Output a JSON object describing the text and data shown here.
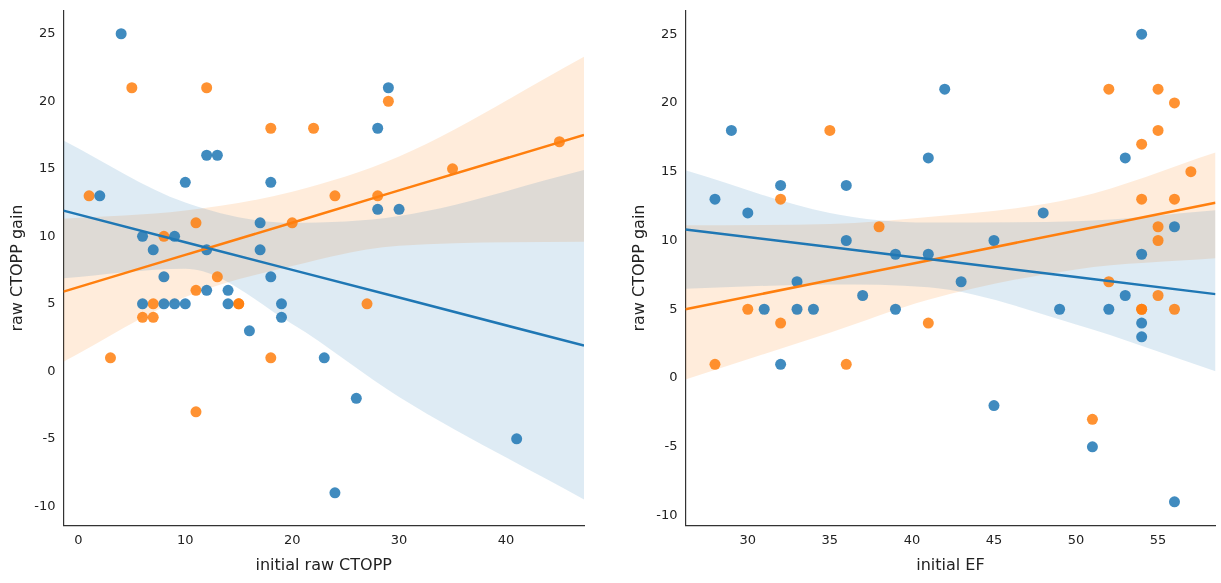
{
  "chart_data": [
    {
      "type": "scatter",
      "xlabel": "initial raw CTOPP",
      "ylabel": "raw CTOPP gain",
      "xlim": [
        -1.4,
        47.3
      ],
      "ylim": [
        -11.4,
        26.7
      ],
      "xticks": [
        0,
        10,
        20,
        30,
        40
      ],
      "yticks": [
        -10,
        -5,
        0,
        5,
        10,
        15,
        20,
        25
      ],
      "marker": "circle",
      "series": [
        {
          "color": "#1f77b4",
          "x": [
            4,
            2,
            10,
            12,
            13,
            18,
            6,
            9,
            7,
            12,
            17,
            17,
            8,
            18,
            6,
            8,
            9,
            10,
            12,
            14,
            14,
            19,
            19,
            16,
            23,
            26,
            24,
            41,
            28,
            29,
            28,
            30
          ],
          "values": [
            25,
            13,
            14,
            16,
            16,
            14,
            10,
            10,
            9,
            9,
            11,
            9,
            7,
            7,
            5,
            5,
            5,
            5,
            6,
            6,
            5,
            5,
            4,
            3,
            1,
            -2,
            -9,
            -5,
            18,
            21,
            12,
            12
          ]
        },
        {
          "color": "#ff7f0e",
          "x": [
            1,
            5,
            12,
            18,
            22,
            8,
            11,
            20,
            24,
            28,
            35,
            45,
            29,
            27,
            6,
            7,
            7,
            11,
            13,
            15,
            15,
            3,
            18,
            11
          ],
          "values": [
            13,
            21,
            21,
            18,
            18,
            10,
            11,
            11,
            13,
            13,
            15,
            17,
            20,
            5,
            4,
            4,
            5,
            6,
            7,
            5,
            5,
            1,
            1,
            -3
          ]
        },
        {
          "type": "line",
          "marker": "none",
          "color": "#1f77b4",
          "x": [
            -1.4,
            10,
            20,
            30,
            47.3
          ],
          "values": [
            11.9,
            9.56,
            7.51,
            5.46,
            1.9
          ],
          "lower": [
            6.9,
            7.6,
            3.5,
            -1.9,
            -9.5
          ],
          "upper": [
            17.1,
            12.5,
            11.0,
            11.5,
            14.9
          ]
        },
        {
          "type": "line",
          "marker": "none",
          "color": "#ff7f0e",
          "x": [
            -1.4,
            10,
            20,
            30,
            47.3
          ],
          "values": [
            5.9,
            8.62,
            11.0,
            13.4,
            17.5
          ],
          "lower": [
            0.7,
            5.5,
            7.8,
            9.3,
            9.6
          ],
          "upper": [
            11.3,
            11.9,
            13.3,
            15.9,
            23.3
          ]
        }
      ]
    },
    {
      "type": "scatter",
      "xlabel": "initial EF",
      "ylabel": "raw CTOPP gain",
      "xlim": [
        26.2,
        58.5
      ],
      "ylim": [
        -10.7,
        26.7
      ],
      "xticks": [
        30,
        35,
        40,
        45,
        50,
        55
      ],
      "yticks": [
        -10,
        -5,
        0,
        5,
        10,
        15,
        20,
        25
      ],
      "marker": "circle",
      "series": [
        {
          "color": "#1f77b4",
          "x": [
            28,
            29,
            30,
            32,
            32,
            36,
            36,
            33,
            31,
            33,
            34,
            37,
            39,
            39,
            41,
            41,
            42,
            43,
            45,
            45,
            48,
            49,
            52,
            53,
            53,
            54,
            54,
            54,
            54,
            56,
            51,
            56
          ],
          "values": [
            13,
            18,
            12,
            14,
            1,
            14,
            10,
            7,
            5,
            5,
            5,
            6,
            9,
            5,
            9,
            16,
            21,
            7,
            10,
            -2,
            12,
            5,
            5,
            6,
            16,
            9,
            4,
            3,
            25,
            11,
            -5,
            -9
          ]
        },
        {
          "color": "#ff7f0e",
          "x": [
            28,
            30,
            32,
            32,
            35,
            36,
            38,
            41,
            52,
            55,
            56,
            55,
            54,
            57,
            54,
            56,
            55,
            55,
            52,
            55,
            54,
            54,
            56,
            51
          ],
          "values": [
            1,
            5,
            13,
            4,
            18,
            1,
            11,
            4,
            21,
            21,
            20,
            18,
            17,
            15,
            13,
            13,
            11,
            10,
            7,
            6,
            5,
            5,
            5,
            -3
          ]
        },
        {
          "type": "line",
          "marker": "none",
          "color": "#1f77b4",
          "x": [
            26.2,
            35,
            41,
            50,
            58.5
          ],
          "values": [
            10.8,
            9.52,
            8.65,
            7.34,
            6.1
          ],
          "lower": [
            6.5,
            6.8,
            6.6,
            3.9,
            0.5
          ],
          "upper": [
            15.1,
            12.0,
            11.3,
            11.4,
            12.2
          ]
        },
        {
          "type": "line",
          "marker": "none",
          "color": "#ff7f0e",
          "x": [
            26.2,
            35,
            41,
            50,
            58.5
          ],
          "values": [
            5.0,
            7.11,
            8.55,
            10.71,
            12.75
          ],
          "lower": [
            -0.1,
            3.3,
            5.7,
            7.9,
            8.7
          ],
          "upper": [
            11.1,
            11.2,
            11.7,
            13.1,
            16.4
          ]
        }
      ]
    }
  ]
}
